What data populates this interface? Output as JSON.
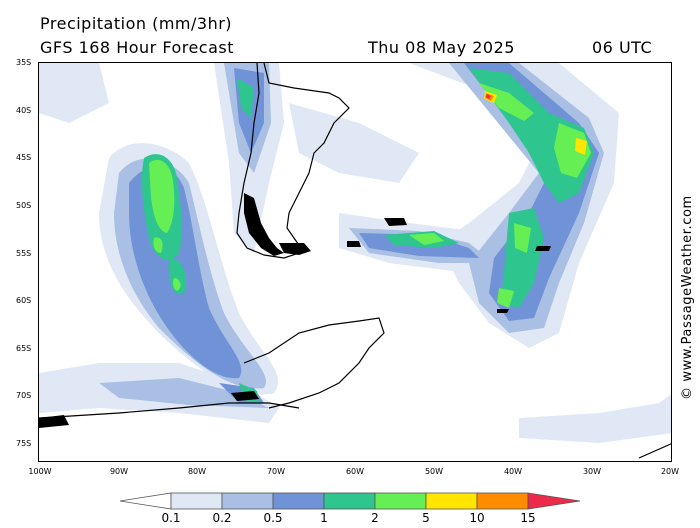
{
  "header": {
    "title": "Precipitation (mm/3hr)",
    "model": "GFS 168 Hour Forecast",
    "date": "Thu 08 May 2025",
    "time": "06 UTC"
  },
  "axes": {
    "lat_labels": [
      "35S",
      "40S",
      "45S",
      "50S",
      "55S",
      "60S",
      "65S",
      "70S",
      "75S"
    ],
    "lon_labels": [
      "100W",
      "90W",
      "80W",
      "70W",
      "60W",
      "50W",
      "40W",
      "30W",
      "20W"
    ]
  },
  "copyright": "© www.PassageWeather.com",
  "legend": {
    "levels": [
      "0.1",
      "0.2",
      "0.5",
      "1",
      "2",
      "5",
      "10",
      "15"
    ],
    "colors": [
      "#ffffff",
      "#e1e8f5",
      "#a9bfe3",
      "#6f93d6",
      "#2ec58f",
      "#66ee55",
      "#ffe500",
      "#ff8c00",
      "#ee2a4a"
    ]
  },
  "map_colors": {
    "light": "#e1e8f5",
    "pale": "#a9bfe3",
    "blue": "#6f93d6",
    "teal": "#2ec58f",
    "green": "#66ee55",
    "yellow": "#ffe500",
    "orange": "#ff8c00",
    "red": "#ee2a4a",
    "land": "#000000"
  }
}
